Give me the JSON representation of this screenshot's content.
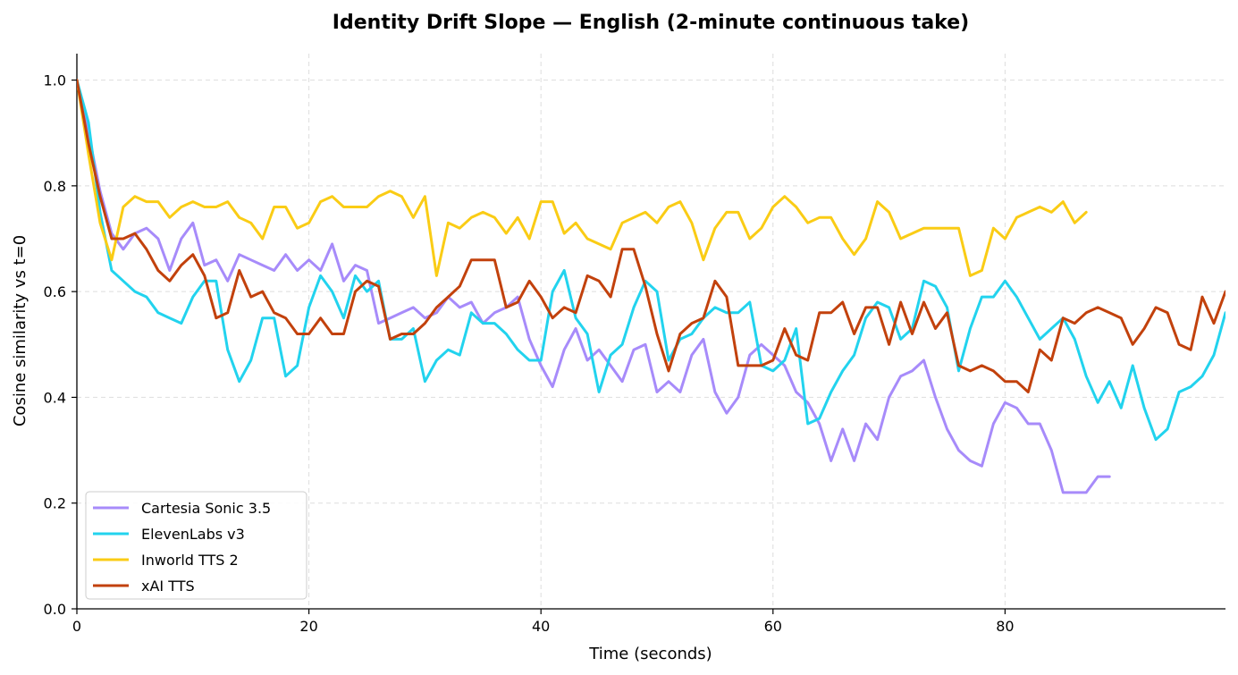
{
  "chart_data": {
    "type": "line",
    "title": "Identity Drift Slope — English (2-minute continuous take)",
    "xlabel": "Time (seconds)",
    "ylabel": "Cosine similarity vs t=0",
    "xlim": [
      0,
      99
    ],
    "ylim": [
      0.0,
      1.05
    ],
    "x_ticks": [
      0,
      20,
      40,
      60,
      80
    ],
    "y_ticks": [
      0.0,
      0.2,
      0.4,
      0.6,
      0.8,
      1.0
    ],
    "grid": true,
    "legend_position": "lower-left",
    "series": [
      {
        "name": "Cartesia Sonic 3.5",
        "color": "#a78bfa",
        "values": [
          1.0,
          0.9,
          0.79,
          0.71,
          0.68,
          0.71,
          0.72,
          0.7,
          0.64,
          0.7,
          0.73,
          0.65,
          0.66,
          0.62,
          0.67,
          0.66,
          0.65,
          0.64,
          0.67,
          0.64,
          0.66,
          0.64,
          0.69,
          0.62,
          0.65,
          0.64,
          0.54,
          0.55,
          0.56,
          0.57,
          0.55,
          0.56,
          0.59,
          0.57,
          0.58,
          0.54,
          0.56,
          0.57,
          0.59,
          0.51,
          0.46,
          0.42,
          0.49,
          0.53,
          0.47,
          0.49,
          0.46,
          0.43,
          0.49,
          0.5,
          0.41,
          0.43,
          0.41,
          0.48,
          0.51,
          0.41,
          0.37,
          0.4,
          0.48,
          0.5,
          0.48,
          0.46,
          0.41,
          0.39,
          0.35,
          0.28,
          0.34,
          0.28,
          0.35,
          0.32,
          0.4,
          0.44,
          0.45,
          0.47,
          0.4,
          0.34,
          0.3,
          0.28,
          0.27,
          0.35,
          0.39,
          0.38,
          0.35,
          0.35,
          0.3,
          0.22,
          0.22,
          0.22,
          0.25,
          0.25
        ]
      },
      {
        "name": "ElevenLabs v3",
        "color": "#22d3ee",
        "values": [
          1.0,
          0.92,
          0.75,
          0.64,
          0.62,
          0.6,
          0.59,
          0.56,
          0.55,
          0.54,
          0.59,
          0.62,
          0.62,
          0.49,
          0.43,
          0.47,
          0.55,
          0.55,
          0.44,
          0.46,
          0.57,
          0.63,
          0.6,
          0.55,
          0.63,
          0.6,
          0.62,
          0.51,
          0.51,
          0.53,
          0.43,
          0.47,
          0.49,
          0.48,
          0.56,
          0.54,
          0.54,
          0.52,
          0.49,
          0.47,
          0.47,
          0.6,
          0.64,
          0.55,
          0.52,
          0.41,
          0.48,
          0.5,
          0.57,
          0.62,
          0.6,
          0.47,
          0.51,
          0.52,
          0.55,
          0.57,
          0.56,
          0.56,
          0.58,
          0.46,
          0.45,
          0.47,
          0.53,
          0.35,
          0.36,
          0.41,
          0.45,
          0.48,
          0.55,
          0.58,
          0.57,
          0.51,
          0.53,
          0.62,
          0.61,
          0.57,
          0.45,
          0.53,
          0.59,
          0.59,
          0.62,
          0.59,
          0.55,
          0.51,
          0.53,
          0.55,
          0.51,
          0.44,
          0.39,
          0.43,
          0.38,
          0.46,
          0.38,
          0.32,
          0.34,
          0.41,
          0.42,
          0.44,
          0.48,
          0.56
        ]
      },
      {
        "name": "Inworld TTS 2",
        "color": "#facc15",
        "values": [
          1.0,
          0.86,
          0.73,
          0.66,
          0.76,
          0.78,
          0.77,
          0.77,
          0.74,
          0.76,
          0.77,
          0.76,
          0.76,
          0.77,
          0.74,
          0.73,
          0.7,
          0.76,
          0.76,
          0.72,
          0.73,
          0.77,
          0.78,
          0.76,
          0.76,
          0.76,
          0.78,
          0.79,
          0.78,
          0.74,
          0.78,
          0.63,
          0.73,
          0.72,
          0.74,
          0.75,
          0.74,
          0.71,
          0.74,
          0.7,
          0.77,
          0.77,
          0.71,
          0.73,
          0.7,
          0.69,
          0.68,
          0.73,
          0.74,
          0.75,
          0.73,
          0.76,
          0.77,
          0.73,
          0.66,
          0.72,
          0.75,
          0.75,
          0.7,
          0.72,
          0.76,
          0.78,
          0.76,
          0.73,
          0.74,
          0.74,
          0.7,
          0.67,
          0.7,
          0.77,
          0.75,
          0.7,
          0.71,
          0.72,
          0.72,
          0.72,
          0.72,
          0.63,
          0.64,
          0.72,
          0.7,
          0.74,
          0.75,
          0.76,
          0.75,
          0.77,
          0.73,
          0.75
        ]
      },
      {
        "name": "xAI TTS",
        "color": "#c2410c",
        "values": [
          1.0,
          0.88,
          0.78,
          0.7,
          0.7,
          0.71,
          0.68,
          0.64,
          0.62,
          0.65,
          0.67,
          0.63,
          0.55,
          0.56,
          0.64,
          0.59,
          0.6,
          0.56,
          0.55,
          0.52,
          0.52,
          0.55,
          0.52,
          0.52,
          0.6,
          0.62,
          0.61,
          0.51,
          0.52,
          0.52,
          0.54,
          0.57,
          0.59,
          0.61,
          0.66,
          0.66,
          0.66,
          0.57,
          0.58,
          0.62,
          0.59,
          0.55,
          0.57,
          0.56,
          0.63,
          0.62,
          0.59,
          0.68,
          0.68,
          0.61,
          0.52,
          0.45,
          0.52,
          0.54,
          0.55,
          0.62,
          0.59,
          0.46,
          0.46,
          0.46,
          0.47,
          0.53,
          0.48,
          0.47,
          0.56,
          0.56,
          0.58,
          0.52,
          0.57,
          0.57,
          0.5,
          0.58,
          0.52,
          0.58,
          0.53,
          0.56,
          0.46,
          0.45,
          0.46,
          0.45,
          0.43,
          0.43,
          0.41,
          0.49,
          0.47,
          0.55,
          0.54,
          0.56,
          0.57,
          0.56,
          0.55,
          0.5,
          0.53,
          0.57,
          0.56,
          0.5,
          0.49,
          0.59,
          0.54,
          0.6
        ]
      }
    ]
  }
}
